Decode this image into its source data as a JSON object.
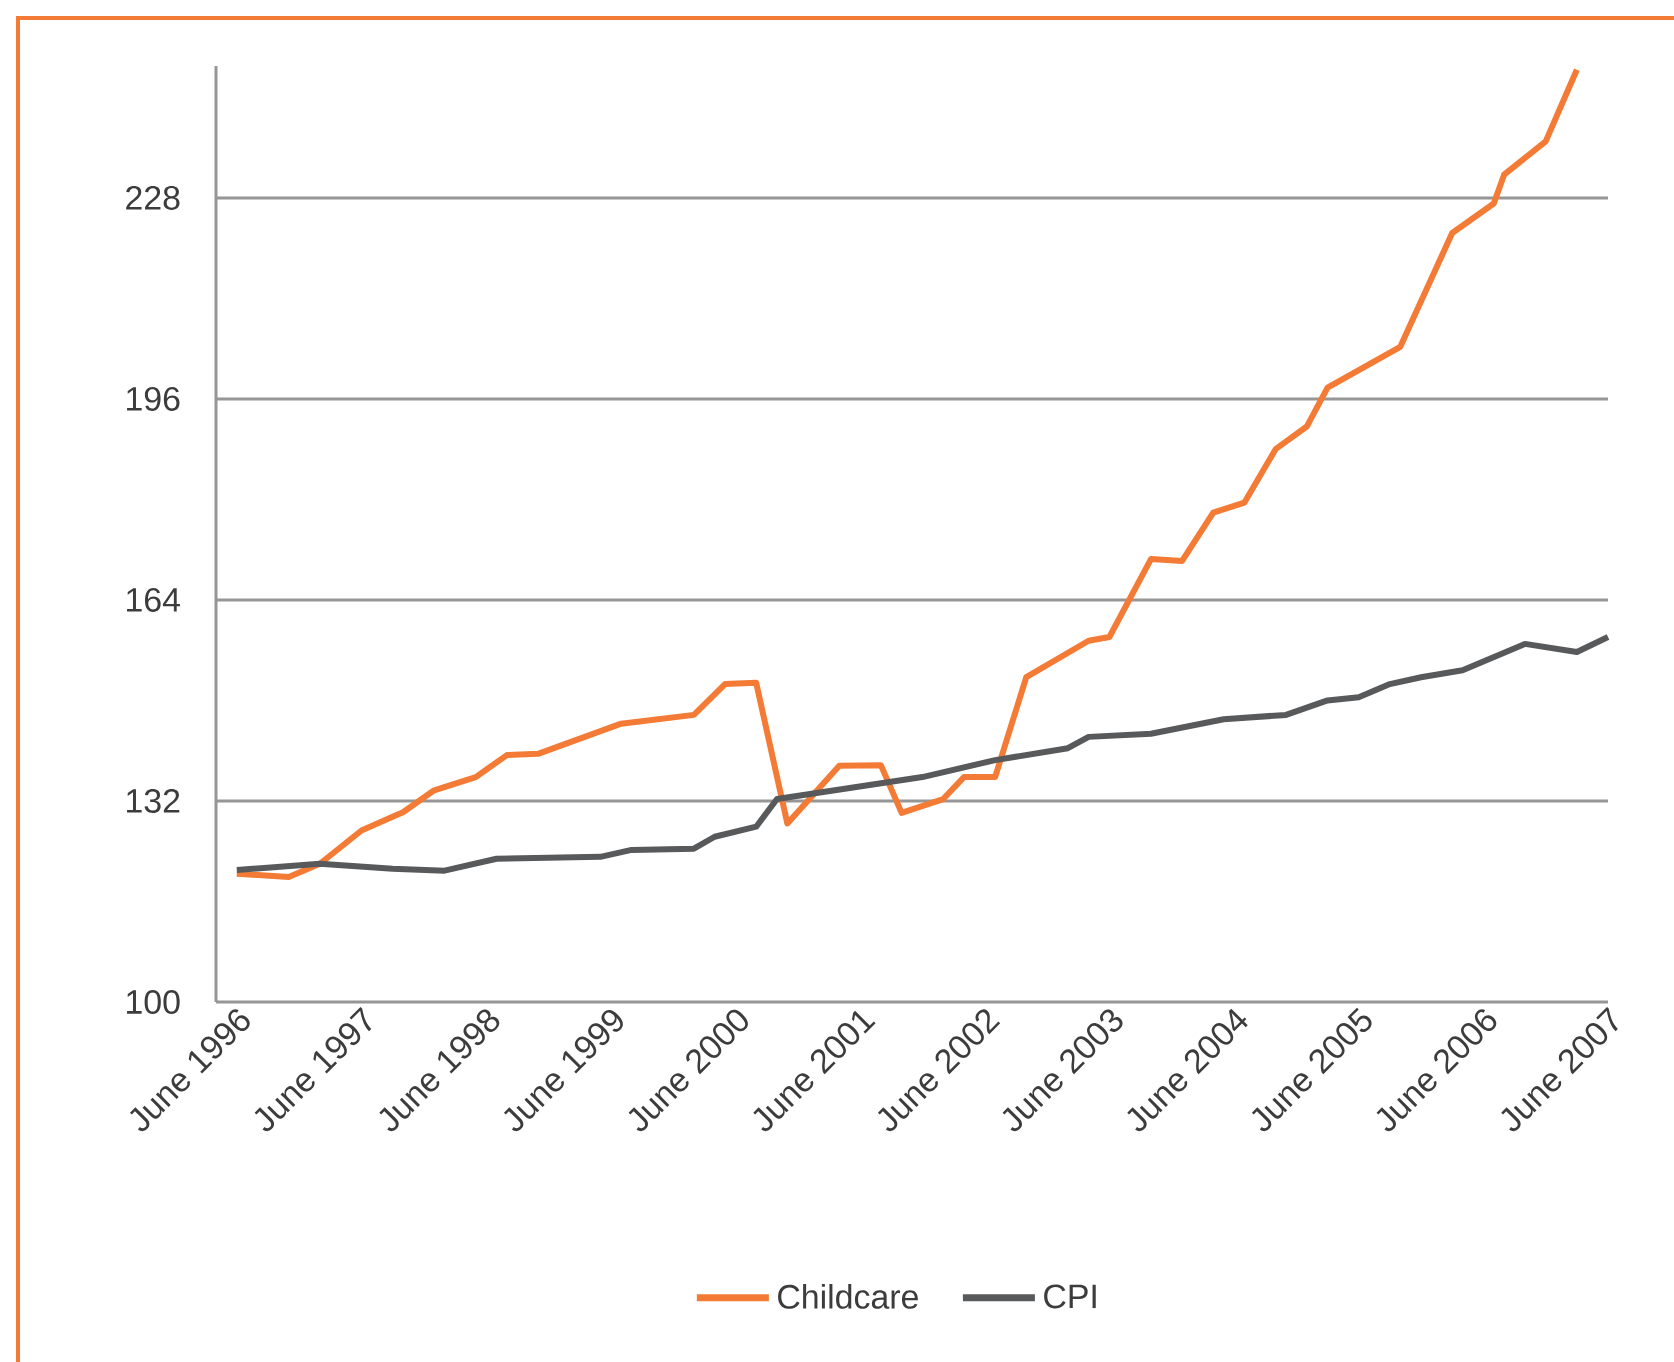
{
  "chart_data": {
    "type": "line",
    "xticks": [
      {
        "value": "1996-06",
        "label": "June 1996"
      },
      {
        "value": "1997-06",
        "label": "June 1997"
      },
      {
        "value": "1998-06",
        "label": "June 1998"
      },
      {
        "value": "1999-06",
        "label": "June 1999"
      },
      {
        "value": "2000-06",
        "label": "June 2000"
      },
      {
        "value": "2001-06",
        "label": "June 2001"
      },
      {
        "value": "2002-06",
        "label": "June 2002"
      },
      {
        "value": "2003-06",
        "label": "June 2003"
      },
      {
        "value": "2004-06",
        "label": "June 2004"
      },
      {
        "value": "2005-06",
        "label": "June 2005"
      },
      {
        "value": "2006-06",
        "label": "June 2006"
      },
      {
        "value": "2007-06",
        "label": "June 2007"
      }
    ],
    "xlim": [
      "1996-04",
      "2007-06"
    ],
    "ylim": [
      100,
      249
    ],
    "yticks": [
      100,
      132,
      164,
      196,
      228
    ],
    "series": [
      {
        "name": "Childcare",
        "color": "#f47b35",
        "x": [
          "1996-06",
          "1996-11",
          "1997-02",
          "1997-06",
          "1997-09",
          "1997-10",
          "1998-01",
          "1998-05",
          "1998-08",
          "1998-11",
          "1999-07",
          "2000-02",
          "2000-05",
          "2000-08",
          "2000-11",
          "2001-04",
          "2001-08",
          "2001-10",
          "2002-02",
          "2002-04",
          "2002-07",
          "2002-10",
          "2003-04",
          "2003-06",
          "2003-10",
          "2004-01",
          "2004-04",
          "2004-07",
          "2004-10",
          "2005-01",
          "2005-03",
          "2005-10",
          "2006-03",
          "2006-07",
          "2006-08",
          "2006-12",
          "2007-03"
        ],
        "values": [
          120.4,
          119.9,
          122.0,
          127.3,
          129.5,
          130.2,
          133.7,
          135.8,
          139.3,
          139.5,
          144.3,
          145.7,
          150.6,
          150.8,
          128.4,
          137.6,
          137.7,
          130.1,
          132.3,
          135.8,
          135.8,
          151.7,
          157.5,
          158.1,
          170.5,
          170.2,
          177.9,
          179.5,
          188.0,
          191.6,
          197.8,
          204.3,
          222.4,
          227.1,
          231.7,
          237.0,
          248.4
        ]
      },
      {
        "name": "CPI",
        "color": "#58595b",
        "x": [
          "1996-06",
          "1997-02",
          "1997-09",
          "1998-02",
          "1998-07",
          "1999-05",
          "1999-08",
          "2000-02",
          "2000-04",
          "2000-08",
          "2000-10",
          "2001-12",
          "2002-07",
          "2003-02",
          "2003-04",
          "2003-10",
          "2004-05",
          "2004-11",
          "2005-03",
          "2005-06",
          "2005-09",
          "2005-12",
          "2006-04",
          "2006-10",
          "2007-03",
          "2007-06"
        ],
        "values": [
          121.0,
          122.0,
          121.2,
          120.9,
          122.8,
          123.1,
          124.2,
          124.4,
          126.3,
          127.9,
          132.3,
          135.8,
          138.5,
          140.4,
          142.2,
          142.7,
          145.0,
          145.7,
          148.0,
          148.5,
          150.6,
          151.7,
          152.8,
          157.0,
          155.7,
          158.1
        ]
      }
    ],
    "grid": "y",
    "legend": "bottom",
    "marker": "none",
    "line_style": "solid"
  }
}
